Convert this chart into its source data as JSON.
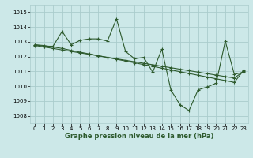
{
  "title": "Graphe pression niveau de la mer (hPa)",
  "bg_color": "#cce8e8",
  "grid_color": "#aacccc",
  "line_color": "#2d5a2d",
  "ylim": [
    1007.5,
    1015.5
  ],
  "xlim": [
    -0.5,
    23.5
  ],
  "yticks": [
    1008,
    1009,
    1010,
    1011,
    1012,
    1013,
    1014,
    1015
  ],
  "xticks": [
    0,
    1,
    2,
    3,
    4,
    5,
    6,
    7,
    8,
    9,
    10,
    11,
    12,
    13,
    14,
    15,
    16,
    17,
    18,
    19,
    20,
    21,
    22,
    23
  ],
  "series1": [
    1012.8,
    1012.7,
    1012.7,
    1013.7,
    1012.8,
    1013.1,
    1013.2,
    1013.2,
    1013.05,
    1014.55,
    1012.35,
    1011.85,
    1011.95,
    1010.95,
    1012.5,
    1009.75,
    1008.75,
    1008.35,
    1009.75,
    1009.95,
    1010.2,
    1013.05,
    1010.8,
    1010.95
  ],
  "series2": [
    1012.8,
    1012.75,
    1012.65,
    1012.55,
    1012.42,
    1012.3,
    1012.18,
    1012.06,
    1011.94,
    1011.82,
    1011.7,
    1011.58,
    1011.46,
    1011.34,
    1011.22,
    1011.1,
    1010.98,
    1010.86,
    1010.74,
    1010.62,
    1010.5,
    1010.38,
    1010.26,
    1011.05
  ],
  "series3": [
    1012.75,
    1012.65,
    1012.55,
    1012.45,
    1012.35,
    1012.25,
    1012.15,
    1012.05,
    1011.95,
    1011.85,
    1011.75,
    1011.65,
    1011.55,
    1011.45,
    1011.35,
    1011.25,
    1011.15,
    1011.05,
    1010.95,
    1010.85,
    1010.75,
    1010.65,
    1010.55,
    1011.0
  ],
  "marker": "+",
  "marker_size": 3,
  "line_width": 0.8,
  "tick_fontsize": 5,
  "xlabel_fontsize": 6,
  "fig_width": 3.2,
  "fig_height": 2.0,
  "dpi": 100
}
